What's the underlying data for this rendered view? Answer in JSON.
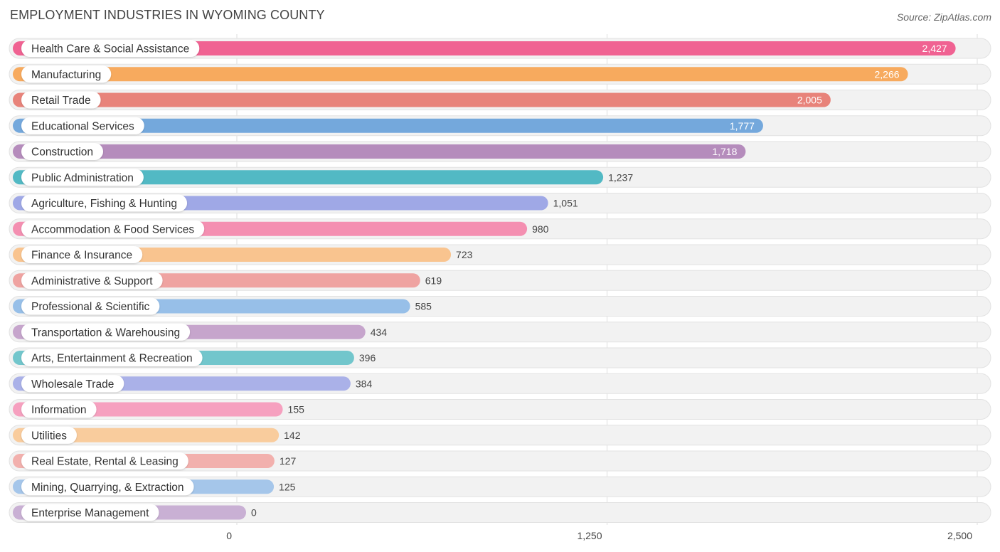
{
  "title": "EMPLOYMENT INDUSTRIES IN WYOMING COUNTY",
  "source": "Source: ZipAtlas.com",
  "chart_data": {
    "type": "bar",
    "orientation": "horizontal",
    "title": "EMPLOYMENT INDUSTRIES IN WYOMING COUNTY",
    "xlim": [
      0,
      2500
    ],
    "x_ticks": [
      0,
      1250,
      2500
    ],
    "x_tick_labels": [
      "0",
      "1,250",
      "2,500"
    ],
    "grid": true,
    "categories": [
      "Health Care & Social Assistance",
      "Manufacturing",
      "Retail Trade",
      "Educational Services",
      "Construction",
      "Public Administration",
      "Agriculture, Fishing & Hunting",
      "Accommodation & Food Services",
      "Finance & Insurance",
      "Administrative & Support",
      "Professional & Scientific",
      "Transportation & Warehousing",
      "Arts, Entertainment & Recreation",
      "Wholesale Trade",
      "Information",
      "Utilities",
      "Real Estate, Rental & Leasing",
      "Mining, Quarrying, & Extraction",
      "Enterprise Management"
    ],
    "values": [
      2427,
      2266,
      2005,
      1777,
      1718,
      1237,
      1051,
      980,
      723,
      619,
      585,
      434,
      396,
      384,
      155,
      142,
      127,
      125,
      0
    ],
    "value_labels": [
      "2,427",
      "2,266",
      "2,005",
      "1,777",
      "1,718",
      "1,237",
      "1,051",
      "980",
      "723",
      "619",
      "585",
      "434",
      "396",
      "384",
      "155",
      "142",
      "127",
      "125",
      "0"
    ],
    "colors": [
      "#f06292",
      "#f7aa5e",
      "#e8837a",
      "#74a8dc",
      "#b58cbc",
      "#52b9c4",
      "#9fa8e6",
      "#f48fb1",
      "#f9c48f",
      "#efa3a1",
      "#97bfe8",
      "#c6a5cc",
      "#72c6cc",
      "#aab1e8",
      "#f6a0bf",
      "#f9cc9d",
      "#f2b0ad",
      "#a5c6ea",
      "#c9b0d4"
    ]
  }
}
